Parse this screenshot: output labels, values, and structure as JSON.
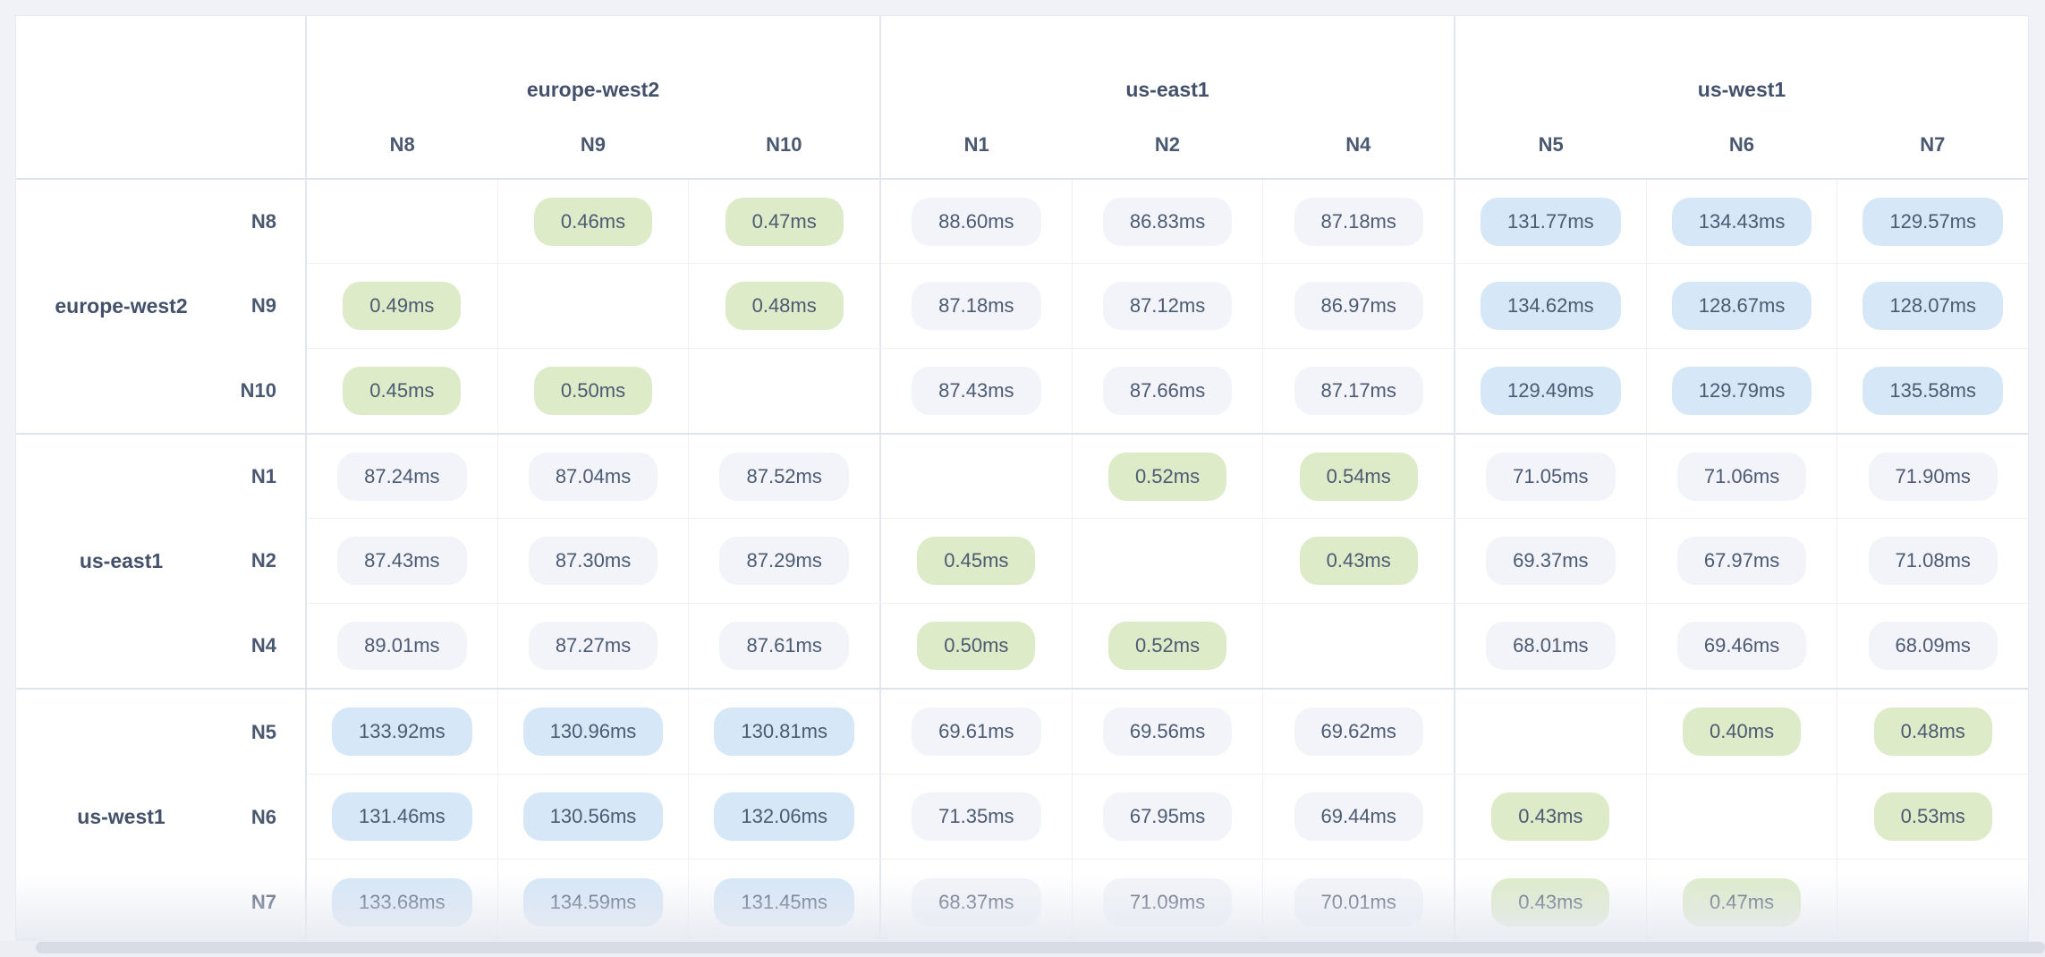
{
  "matrix": {
    "column_groups": [
      {
        "region": "europe-west2",
        "nodes": [
          "N8",
          "N9",
          "N10"
        ]
      },
      {
        "region": "us-east1",
        "nodes": [
          "N1",
          "N2",
          "N4"
        ]
      },
      {
        "region": "us-west1",
        "nodes": [
          "N5",
          "N6",
          "N7"
        ]
      }
    ],
    "row_groups": [
      {
        "region": "europe-west2",
        "rows": [
          {
            "node": "N8",
            "values": [
              null,
              "0.46ms",
              "0.47ms",
              "88.60ms",
              "86.83ms",
              "87.18ms",
              "131.77ms",
              "134.43ms",
              "129.57ms"
            ]
          },
          {
            "node": "N9",
            "values": [
              "0.49ms",
              null,
              "0.48ms",
              "87.18ms",
              "87.12ms",
              "86.97ms",
              "134.62ms",
              "128.67ms",
              "128.07ms"
            ]
          },
          {
            "node": "N10",
            "values": [
              "0.45ms",
              "0.50ms",
              null,
              "87.43ms",
              "87.66ms",
              "87.17ms",
              "129.49ms",
              "129.79ms",
              "135.58ms"
            ]
          }
        ]
      },
      {
        "region": "us-east1",
        "rows": [
          {
            "node": "N1",
            "values": [
              "87.24ms",
              "87.04ms",
              "87.52ms",
              null,
              "0.52ms",
              "0.54ms",
              "71.05ms",
              "71.06ms",
              "71.90ms"
            ]
          },
          {
            "node": "N2",
            "values": [
              "87.43ms",
              "87.30ms",
              "87.29ms",
              "0.45ms",
              null,
              "0.43ms",
              "69.37ms",
              "67.97ms",
              "71.08ms"
            ]
          },
          {
            "node": "N4",
            "values": [
              "89.01ms",
              "87.27ms",
              "87.61ms",
              "0.50ms",
              "0.52ms",
              null,
              "68.01ms",
              "69.46ms",
              "68.09ms"
            ]
          }
        ]
      },
      {
        "region": "us-west1",
        "rows": [
          {
            "node": "N5",
            "values": [
              "133.92ms",
              "130.96ms",
              "130.81ms",
              "69.61ms",
              "69.56ms",
              "69.62ms",
              null,
              "0.40ms",
              "0.48ms"
            ]
          },
          {
            "node": "N6",
            "values": [
              "131.46ms",
              "130.56ms",
              "132.06ms",
              "71.35ms",
              "67.95ms",
              "69.44ms",
              "0.43ms",
              null,
              "0.53ms"
            ]
          },
          {
            "node": "N7",
            "values": [
              "133.68ms",
              "134.59ms",
              "131.45ms",
              "68.37ms",
              "71.09ms",
              "70.01ms",
              "0.43ms",
              "0.47ms",
              null
            ]
          }
        ]
      }
    ],
    "tier_colors": {
      "fast_intra_region": "#ddebc9",
      "medium": "#f2f4f9",
      "high": "#d6e7f7"
    },
    "tier_thresholds_ms": {
      "fast_below": 1,
      "high_at_or_above": 100
    },
    "value_unit": "ms"
  }
}
